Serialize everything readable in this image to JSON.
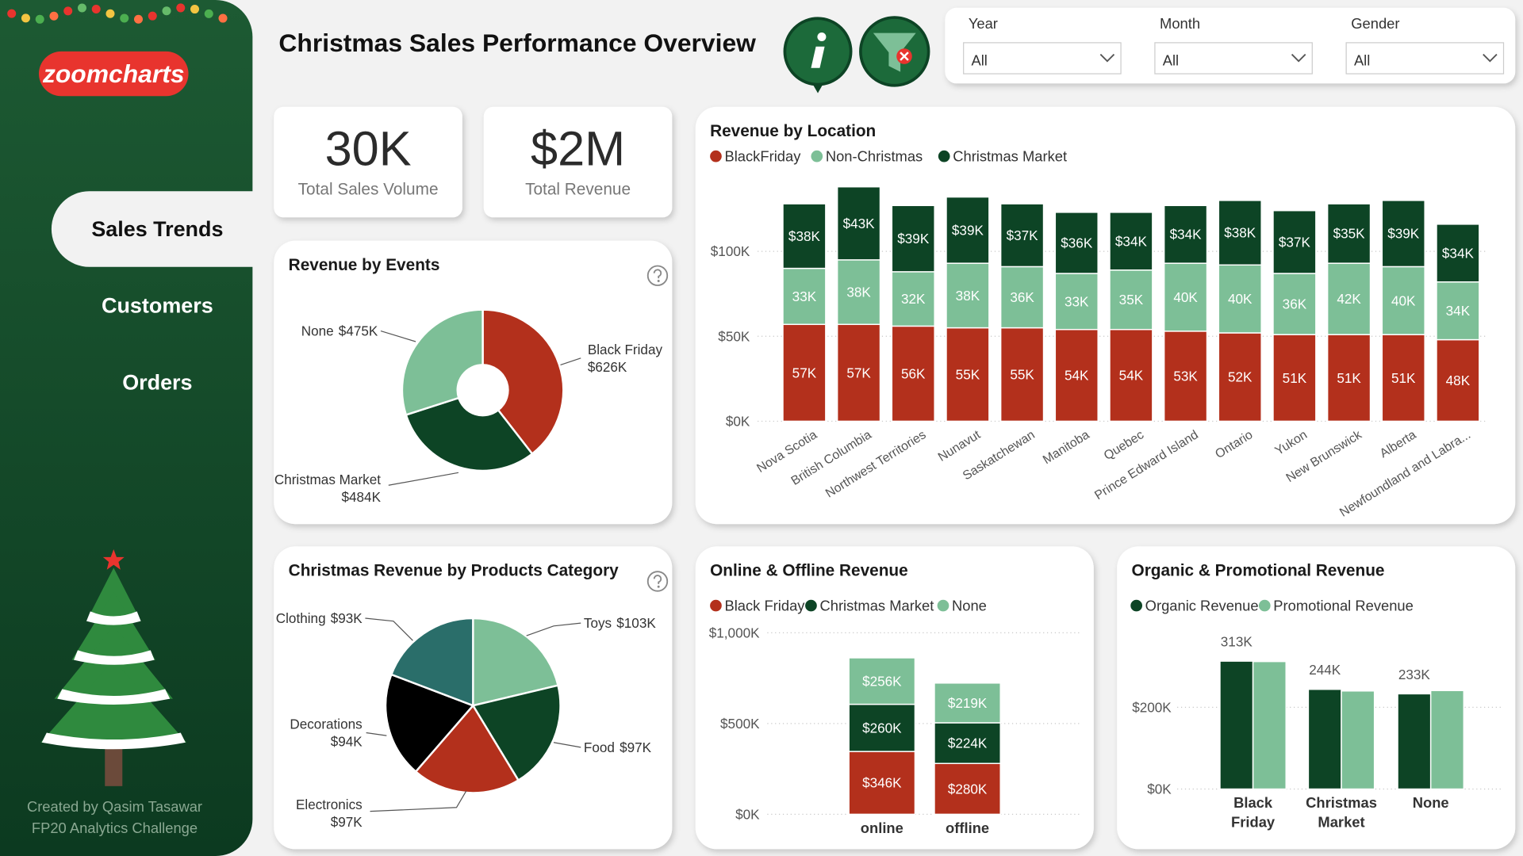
{
  "header": {
    "brand": "zoomcharts",
    "title": "Christmas Sales Performance Overview"
  },
  "nav": {
    "items": [
      "Sales Trends",
      "Customers",
      "Orders"
    ],
    "selected": 0
  },
  "credits": [
    "Created by Qasim Tasawar",
    "FP20 Analytics Challenge"
  ],
  "filters": [
    {
      "label": "Year",
      "value": "All"
    },
    {
      "label": "Month",
      "value": "All"
    },
    {
      "label": "Gender",
      "value": "All"
    }
  ],
  "kpis": [
    {
      "value": "30K",
      "label": "Total Sales Volume"
    },
    {
      "value": "$2M",
      "label": "Total Revenue"
    }
  ],
  "chart_data": [
    {
      "type": "pie",
      "hole": true,
      "title": "Revenue by Events",
      "categories": [
        "Black Friday",
        "Christmas Market",
        "None"
      ],
      "values": [
        626000,
        484000,
        475000
      ],
      "value_labels": [
        "$626K",
        "$484K",
        "$475K"
      ],
      "colors": [
        "#b3301c",
        "#0d4425",
        "#7dbf97"
      ]
    },
    {
      "type": "bar",
      "stacked": true,
      "title": "Revenue by Location",
      "categories": [
        "Nova Scotia",
        "British Columbia",
        "Northwest Territories",
        "Nunavut",
        "Saskatchewan",
        "Manitoba",
        "Quebec",
        "Prince Edward Island",
        "Ontario",
        "Yukon",
        "New Brunswick",
        "Alberta",
        "Newfoundland and Labra..."
      ],
      "series": [
        {
          "name": "BlackFriday",
          "color": "#b3301c",
          "values": [
            57000,
            57000,
            56000,
            55000,
            55000,
            54000,
            54000,
            53000,
            52000,
            51000,
            51000,
            51000,
            48000
          ],
          "value_labels": [
            "57K",
            "57K",
            "56K",
            "55K",
            "55K",
            "54K",
            "54K",
            "53K",
            "52K",
            "51K",
            "51K",
            "51K",
            "48K"
          ]
        },
        {
          "name": "Non-Christmas",
          "color": "#7dbf97",
          "values": [
            33000,
            38000,
            32000,
            38000,
            36000,
            33000,
            35000,
            40000,
            40000,
            36000,
            42000,
            40000,
            34000
          ],
          "value_labels": [
            "33K",
            "38K",
            "32K",
            "38K",
            "36K",
            "33K",
            "35K",
            "40K",
            "40K",
            "36K",
            "42K",
            "40K",
            "34K"
          ]
        },
        {
          "name": "Christmas Market",
          "color": "#0d4425",
          "values": [
            38000,
            43000,
            39000,
            39000,
            37000,
            36000,
            34000,
            34000,
            38000,
            37000,
            35000,
            39000,
            34000
          ],
          "value_labels": [
            "$38K",
            "$43K",
            "$39K",
            "$39K",
            "$37K",
            "$36K",
            "$34K",
            "$34K",
            "$38K",
            "$37K",
            "$35K",
            "$39K",
            "$34K"
          ]
        }
      ],
      "ylim": [
        0,
        140000
      ],
      "yticks": [
        {
          "value": 0,
          "label": "$0K"
        },
        {
          "value": 50000,
          "label": "$50K"
        },
        {
          "value": 100000,
          "label": "$100K"
        }
      ],
      "grid": true
    },
    {
      "type": "pie",
      "hole": false,
      "title": "Christmas Revenue by Products Category",
      "categories": [
        "Toys",
        "Food",
        "Electronics",
        "Decorations",
        "Clothing"
      ],
      "values": [
        103000,
        97000,
        97000,
        94000,
        93000
      ],
      "value_labels": [
        "$103K",
        "$97K",
        "$97K",
        "$94K",
        "$93K"
      ],
      "colors": [
        "#7dbf97",
        "#0d4425",
        "#b3301c",
        "#000000",
        "#2a6e6a"
      ]
    },
    {
      "type": "bar",
      "stacked": true,
      "title": "Online & Offline Revenue",
      "categories": [
        "online",
        "offline"
      ],
      "series": [
        {
          "name": "Black Friday",
          "color": "#b3301c",
          "values": [
            346000,
            280000
          ],
          "value_labels": [
            "$346K",
            "$280K"
          ]
        },
        {
          "name": "Christmas Market",
          "color": "#0d4425",
          "values": [
            260000,
            224000
          ],
          "value_labels": [
            "$260K",
            "$224K"
          ]
        },
        {
          "name": "None",
          "color": "#7dbf97",
          "values": [
            256000,
            219000
          ],
          "value_labels": [
            "$256K",
            "$219K"
          ]
        }
      ],
      "ylim": [
        0,
        1000000
      ],
      "yticks": [
        {
          "value": 0,
          "label": "$0K"
        },
        {
          "value": 500000,
          "label": "$500K"
        },
        {
          "value": 1000000,
          "label": "$1,000K"
        }
      ],
      "grid": true
    },
    {
      "type": "bar",
      "stacked": false,
      "title": "Organic & Promotional Revenue",
      "categories": [
        "Black Friday",
        "Christmas Market",
        "None"
      ],
      "series": [
        {
          "name": "Organic Revenue",
          "color": "#0d4425",
          "values": [
            313000,
            244000,
            233000
          ],
          "value_labels": [
            "313K",
            "244K",
            "233K"
          ]
        },
        {
          "name": "Promotional Revenue",
          "color": "#7dbf97",
          "values": [
            312000,
            240000,
            241000
          ]
        }
      ],
      "ylim": [
        0,
        380000
      ],
      "yticks": [
        {
          "value": 0,
          "label": "$0K"
        },
        {
          "value": 200000,
          "label": "$200K"
        }
      ],
      "grid": true
    }
  ]
}
